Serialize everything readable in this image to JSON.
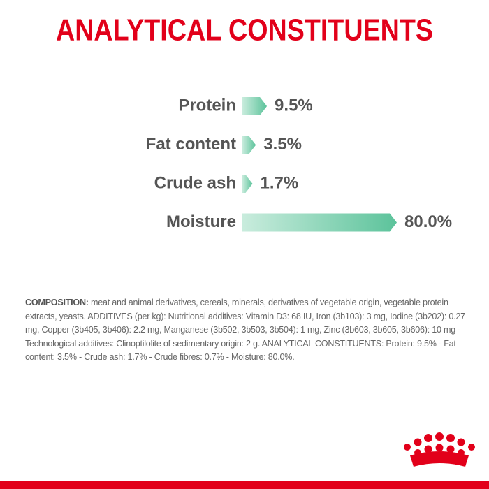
{
  "chart_data": {
    "type": "bar",
    "orientation": "horizontal",
    "title": "ANALYTICAL CONSTITUENTS",
    "categories": [
      "Protein",
      "Fat content",
      "Crude ash",
      "Moisture"
    ],
    "values": [
      9.5,
      3.5,
      1.7,
      80.0
    ],
    "value_labels": [
      "9.5%",
      "3.5%",
      "1.7%",
      "80.0%"
    ],
    "color": [
      "#c9ecdd",
      "#5cc39b"
    ]
  },
  "composition": {
    "label": "COMPOSITION:",
    "text": "meat and animal derivatives, cereals, minerals, derivatives of vegetable origin, vegetable protein extracts, yeasts. ADDITIVES (per kg): Nutritional additives: Vitamin D3: 68 IU, Iron (3b103): 3 mg, Iodine (3b202): 0.27 mg, Copper (3b405, 3b406): 2.2 mg, Manganese (3b502, 3b503, 3b504): 1 mg, Zinc (3b603, 3b605, 3b606): 10 mg - Technological additives: Clinoptilolite of sedimentary origin: 2 g. ANALYTICAL CONSTITUENTS: Protein: 9.5% - Fat content: 3.5% - Crude ash: 1.7% - Crude fibres: 0.7% - Moisture: 80.0%."
  }
}
